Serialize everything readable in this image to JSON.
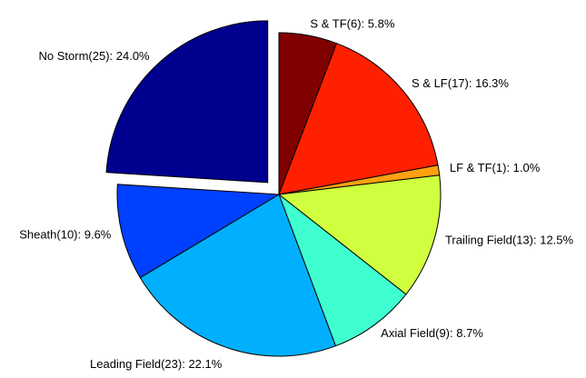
{
  "chart_data": {
    "type": "pie",
    "values": [
      5.8,
      16.3,
      1.0,
      12.5,
      8.7,
      22.1,
      9.6,
      24.0
    ],
    "value_labels": [
      "S & TF(6): 5.8%",
      "S & LF(17): 16.3%",
      "LF & TF(1): 1.0%",
      "Trailing Field(13): 12.5%",
      "Axial Field(9): 8.7%",
      "Leading Field(23): 22.1%",
      "Sheath(10): 9.6%",
      "No Storm(25): 24.0%"
    ],
    "colors": [
      "#800000",
      "#ff2000",
      "#ffa010",
      "#cfff3f",
      "#3fffd0",
      "#00b0ff",
      "#0040ff",
      "#00008f"
    ],
    "exploded": [
      false,
      false,
      false,
      false,
      false,
      false,
      false,
      true
    ]
  }
}
